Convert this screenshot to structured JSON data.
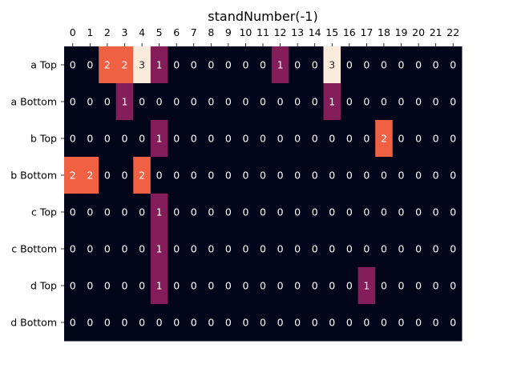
{
  "chart_data": {
    "type": "heatmap",
    "title": "standNumber(-1)",
    "x_ticks": [
      "0",
      "1",
      "2",
      "3",
      "4",
      "5",
      "6",
      "7",
      "8",
      "9",
      "10",
      "11",
      "12",
      "13",
      "14",
      "15",
      "16",
      "17",
      "18",
      "19",
      "20",
      "21",
      "22"
    ],
    "y_ticks": [
      "a Top",
      "a Bottom",
      "b Top",
      "b Bottom",
      "c Top",
      "c Bottom",
      "d Top",
      "d Bottom"
    ],
    "values": [
      [
        0,
        0,
        2,
        2,
        3,
        1,
        0,
        0,
        0,
        0,
        0,
        0,
        1,
        0,
        0,
        3,
        0,
        0,
        0,
        0,
        0,
        0,
        0
      ],
      [
        0,
        0,
        0,
        1,
        0,
        0,
        0,
        0,
        0,
        0,
        0,
        0,
        0,
        0,
        0,
        1,
        0,
        0,
        0,
        0,
        0,
        0,
        0
      ],
      [
        0,
        0,
        0,
        0,
        0,
        1,
        0,
        0,
        0,
        0,
        0,
        0,
        0,
        0,
        0,
        0,
        0,
        0,
        2,
        0,
        0,
        0,
        0
      ],
      [
        2,
        2,
        0,
        0,
        2,
        0,
        0,
        0,
        0,
        0,
        0,
        0,
        0,
        0,
        0,
        0,
        0,
        0,
        0,
        0,
        0,
        0,
        0
      ],
      [
        0,
        0,
        0,
        0,
        0,
        1,
        0,
        0,
        0,
        0,
        0,
        0,
        0,
        0,
        0,
        0,
        0,
        0,
        0,
        0,
        0,
        0,
        0
      ],
      [
        0,
        0,
        0,
        0,
        0,
        1,
        0,
        0,
        0,
        0,
        0,
        0,
        0,
        0,
        0,
        0,
        0,
        0,
        0,
        0,
        0,
        0,
        0
      ],
      [
        0,
        0,
        0,
        0,
        0,
        1,
        0,
        0,
        0,
        0,
        0,
        0,
        0,
        0,
        0,
        0,
        0,
        1,
        0,
        0,
        0,
        0,
        0
      ],
      [
        0,
        0,
        0,
        0,
        0,
        0,
        0,
        0,
        0,
        0,
        0,
        0,
        0,
        0,
        0,
        0,
        0,
        0,
        0,
        0,
        0,
        0,
        0
      ]
    ],
    "value_range": [
      0,
      3
    ],
    "annotated": true,
    "colors": {
      "0": "#03051a",
      "1": "#841e5a",
      "2": "#f06043",
      "3": "#faebdd"
    },
    "label_colors": {
      "dark_cell": "#ffffff",
      "light_cell": "#262626"
    },
    "x_axis_position": "top",
    "grid": false,
    "legend": "none"
  }
}
